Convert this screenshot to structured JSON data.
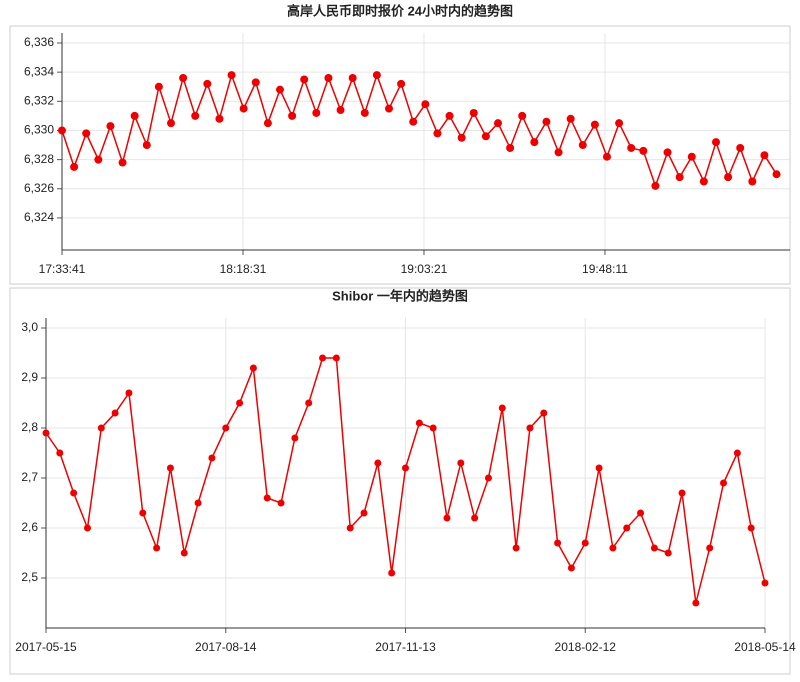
{
  "chart_data": [
    {
      "type": "line",
      "title": "高岸人民币即时报价 24小时内的趋势图",
      "color": "#ee0000",
      "x": [
        63221,
        63401,
        63581,
        63761,
        63941,
        64121,
        64301,
        64481,
        64661,
        64841,
        65021,
        65201,
        65381,
        65561,
        65741,
        65921,
        66101,
        66281,
        66461,
        66641,
        66821,
        67001,
        67181,
        67361,
        67541,
        67721,
        67901,
        68081,
        68261,
        68441,
        68621,
        68801,
        68981,
        69161,
        69341,
        69521,
        69701,
        69881,
        70061,
        70241,
        70421,
        70601,
        70781,
        70961,
        71141,
        71321,
        71501,
        71681,
        71861,
        72041,
        72221,
        72401,
        72581,
        72761,
        72941,
        73121,
        73301,
        73481,
        73661,
        73841
      ],
      "values": [
        6330,
        6327.5,
        6329.8,
        6328,
        6330.3,
        6327.8,
        6331,
        6329,
        6333,
        6330.5,
        6333.6,
        6331,
        6333.2,
        6330.8,
        6333.8,
        6331.5,
        6333.3,
        6330.5,
        6332.8,
        6331,
        6333.5,
        6331.2,
        6333.6,
        6331.4,
        6333.6,
        6331.2,
        6333.8,
        6331.5,
        6333.2,
        6330.6,
        6331.8,
        6329.8,
        6331,
        6329.5,
        6331.2,
        6329.6,
        6330.5,
        6328.8,
        6331,
        6329.2,
        6330.6,
        6328.5,
        6330.8,
        6329,
        6330.4,
        6328.2,
        6330.5,
        6328.8,
        6328.6,
        6326.2,
        6328.5,
        6326.8,
        6328.2,
        6326.5,
        6329.2,
        6326.8,
        6328.8,
        6326.5,
        6328.3,
        6327
      ],
      "xlim": [
        63221,
        74041
      ],
      "xticks": [
        {
          "value": 63221,
          "label": "17:33:41"
        },
        {
          "value": 65911,
          "label": "18:18:31"
        },
        {
          "value": 68601,
          "label": "19:03:21"
        },
        {
          "value": 71291,
          "label": "19:48:11"
        }
      ],
      "ylim": [
        6321.8,
        6336
      ],
      "yticks": [
        {
          "value": 6324,
          "label": "6,324"
        },
        {
          "value": 6326,
          "label": "6,326"
        },
        {
          "value": 6328,
          "label": "6,328"
        },
        {
          "value": 6330,
          "label": "6,330"
        },
        {
          "value": 6332,
          "label": "6,332"
        },
        {
          "value": 6334,
          "label": "6,334"
        },
        {
          "value": 6336,
          "label": "6,336"
        }
      ],
      "grid": true
    },
    {
      "type": "line",
      "title": "Shibor 一年内的趋势图",
      "color": "#ee0000",
      "x": [
        "2017-05-15",
        "2017-05-22",
        "2017-05-29",
        "2017-06-05",
        "2017-06-12",
        "2017-06-19",
        "2017-06-26",
        "2017-07-03",
        "2017-07-10",
        "2017-07-17",
        "2017-07-24",
        "2017-07-31",
        "2017-08-07",
        "2017-08-14",
        "2017-08-21",
        "2017-08-28",
        "2017-09-04",
        "2017-09-11",
        "2017-09-18",
        "2017-09-25",
        "2017-10-02",
        "2017-10-09",
        "2017-10-16",
        "2017-10-23",
        "2017-10-30",
        "2017-11-06",
        "2017-11-13",
        "2017-11-20",
        "2017-11-27",
        "2017-12-04",
        "2017-12-11",
        "2017-12-18",
        "2017-12-25",
        "2018-01-01",
        "2018-01-08",
        "2018-01-15",
        "2018-01-22",
        "2018-01-29",
        "2018-02-05",
        "2018-02-12",
        "2018-02-19",
        "2018-02-26",
        "2018-03-05",
        "2018-03-12",
        "2018-03-19",
        "2018-03-26",
        "2018-04-02",
        "2018-04-09",
        "2018-04-16",
        "2018-04-23",
        "2018-04-30",
        "2018-05-07",
        "2018-05-14"
      ],
      "values": [
        2.79,
        2.75,
        2.67,
        2.6,
        2.8,
        2.83,
        2.87,
        2.63,
        2.56,
        2.72,
        2.55,
        2.65,
        2.74,
        2.8,
        2.85,
        2.92,
        2.66,
        2.65,
        2.78,
        2.85,
        2.94,
        2.94,
        2.6,
        2.63,
        2.73,
        2.51,
        2.72,
        2.81,
        2.8,
        2.62,
        2.73,
        2.62,
        2.7,
        2.84,
        2.56,
        2.8,
        2.83,
        2.57,
        2.52,
        2.57,
        2.72,
        2.56,
        2.6,
        2.63,
        2.56,
        2.55,
        2.67,
        2.45,
        2.56,
        2.69,
        2.75,
        2.6,
        2.49
      ],
      "xlim": [
        "2017-05-15",
        "2018-05-14"
      ],
      "xticks": [
        "2017-05-15",
        "2017-08-14",
        "2017-11-13",
        "2018-02-12",
        "2018-05-14"
      ],
      "ylim": [
        2.4,
        3.0
      ],
      "yticks": [
        {
          "value": 2.5,
          "label": "2,5"
        },
        {
          "value": 2.6,
          "label": "2,6"
        },
        {
          "value": 2.7,
          "label": "2,7"
        },
        {
          "value": 2.8,
          "label": "2,8"
        },
        {
          "value": 2.9,
          "label": "2,9"
        },
        {
          "value": 3.0,
          "label": "3,0"
        }
      ],
      "grid": true
    }
  ]
}
